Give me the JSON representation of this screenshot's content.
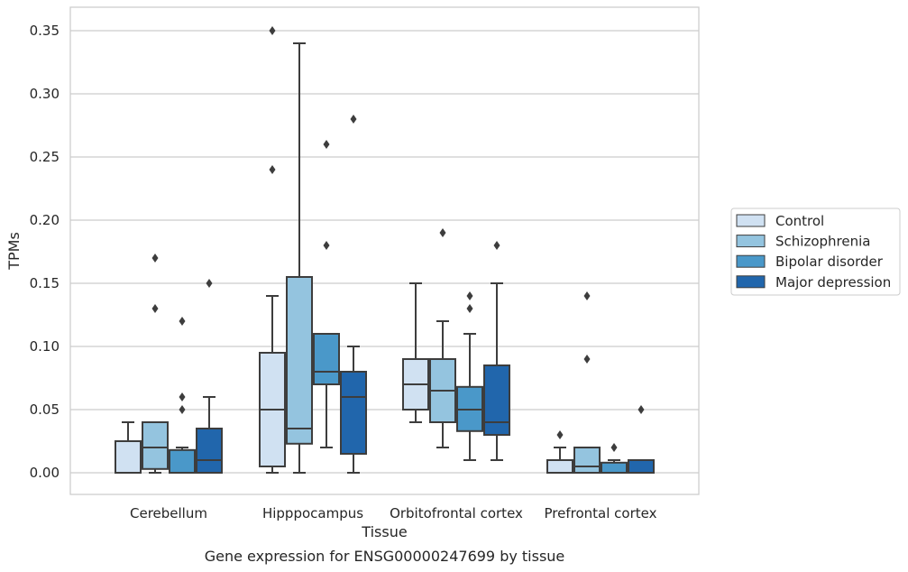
{
  "chart_data": {
    "type": "box",
    "title": "",
    "caption": "Gene expression for ENSG00000247699 by tissue",
    "xlabel": "Tissue",
    "ylabel": "TPMs",
    "ylim": [
      -0.017,
      0.367
    ],
    "yticks": [
      "0.00",
      "0.05",
      "0.10",
      "0.15",
      "0.20",
      "0.25",
      "0.30",
      "0.35"
    ],
    "grid": true,
    "legend_placement": "right",
    "categories": [
      "Cerebellum",
      "Hipppocampus",
      "Orbitofrontal cortex",
      "Prefrontal cortex"
    ],
    "series": [
      {
        "name": "Control",
        "color": "#d0e1f2",
        "boxes": [
          {
            "whislo": 0.0,
            "q1": 0.0,
            "med": 0.0,
            "q3": 0.025,
            "whishi": 0.04,
            "fliers": []
          },
          {
            "whislo": 0.0,
            "q1": 0.005,
            "med": 0.05,
            "q3": 0.095,
            "whishi": 0.14,
            "fliers": [
              0.24,
              0.35
            ]
          },
          {
            "whislo": 0.04,
            "q1": 0.05,
            "med": 0.07,
            "q3": 0.09,
            "whishi": 0.15,
            "fliers": []
          },
          {
            "whislo": 0.0,
            "q1": 0.0,
            "med": 0.0,
            "q3": 0.01,
            "whishi": 0.02,
            "fliers": [
              0.03
            ]
          }
        ]
      },
      {
        "name": "Schizophrenia",
        "color": "#94c4df",
        "boxes": [
          {
            "whislo": 0.0,
            "q1": 0.003,
            "med": 0.02,
            "q3": 0.04,
            "whishi": 0.04,
            "fliers": [
              0.13,
              0.17
            ]
          },
          {
            "whislo": 0.0,
            "q1": 0.023,
            "med": 0.035,
            "q3": 0.155,
            "whishi": 0.34,
            "fliers": []
          },
          {
            "whislo": 0.02,
            "q1": 0.04,
            "med": 0.065,
            "q3": 0.09,
            "whishi": 0.12,
            "fliers": [
              0.19
            ]
          },
          {
            "whislo": 0.0,
            "q1": 0.0,
            "med": 0.005,
            "q3": 0.02,
            "whishi": 0.02,
            "fliers": [
              0.09,
              0.14
            ]
          }
        ]
      },
      {
        "name": "Bipolar disorder",
        "color": "#4a98c9",
        "boxes": [
          {
            "whislo": 0.0,
            "q1": 0.0,
            "med": 0.0,
            "q3": 0.018,
            "whishi": 0.02,
            "fliers": [
              0.05,
              0.06,
              0.12
            ]
          },
          {
            "whislo": 0.02,
            "q1": 0.07,
            "med": 0.08,
            "q3": 0.11,
            "whishi": 0.11,
            "fliers": [
              0.18,
              0.26
            ]
          },
          {
            "whislo": 0.01,
            "q1": 0.033,
            "med": 0.05,
            "q3": 0.068,
            "whishi": 0.11,
            "fliers": [
              0.13,
              0.14
            ]
          },
          {
            "whislo": 0.0,
            "q1": 0.0,
            "med": 0.0,
            "q3": 0.008,
            "whishi": 0.01,
            "fliers": [
              0.02
            ]
          }
        ]
      },
      {
        "name": "Major depression",
        "color": "#2166ac",
        "boxes": [
          {
            "whislo": 0.0,
            "q1": 0.0,
            "med": 0.01,
            "q3": 0.035,
            "whishi": 0.06,
            "fliers": [
              0.15
            ]
          },
          {
            "whislo": 0.0,
            "q1": 0.015,
            "med": 0.06,
            "q3": 0.08,
            "whishi": 0.1,
            "fliers": [
              0.28
            ]
          },
          {
            "whislo": 0.01,
            "q1": 0.03,
            "med": 0.04,
            "q3": 0.085,
            "whishi": 0.15,
            "fliers": [
              0.18
            ]
          },
          {
            "whislo": 0.0,
            "q1": 0.0,
            "med": 0.0,
            "q3": 0.01,
            "whishi": 0.01,
            "fliers": [
              0.05
            ]
          }
        ]
      }
    ]
  }
}
